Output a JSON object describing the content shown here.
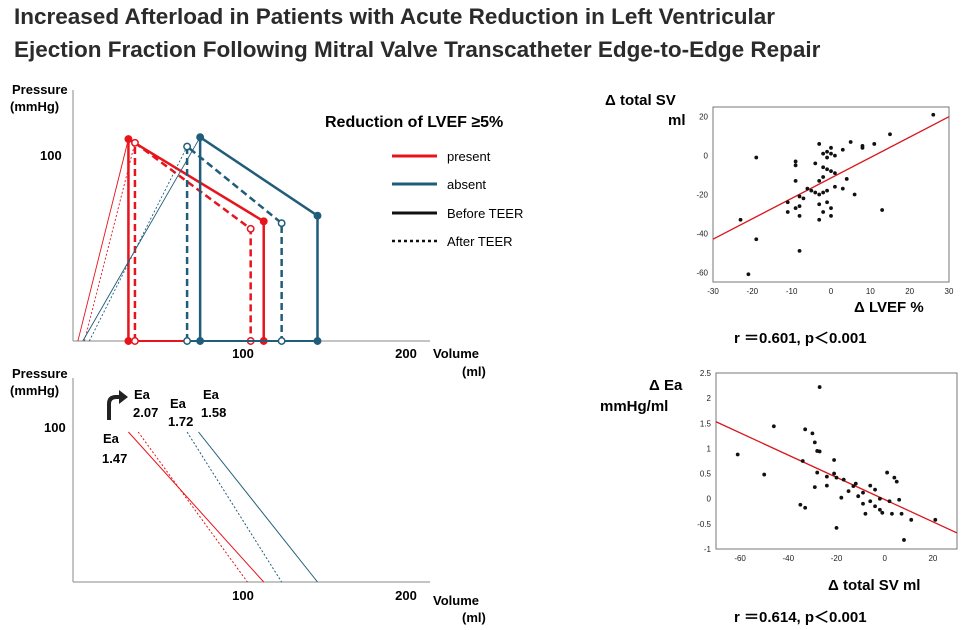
{
  "title": {
    "line1": "Increased Afterload in Patients with Acute Reduction in Left Ventricular",
    "line2": "Ejection Fraction Following Mitral Valve Transcatheter Edge-to-Edge Repair"
  },
  "colors": {
    "present": "#e8141c",
    "absent": "#1f5d7a",
    "fit_line": "#d9161c",
    "points": "#111111"
  },
  "chart_data": [
    {
      "id": "pv-loops",
      "type": "line",
      "title": "Reduction of LVEF ≥5%",
      "ylabel_line1": "Pressure",
      "ylabel_line2": "(mmHg)",
      "xlabel_line1": "Volume",
      "xlabel_line2": "(ml)",
      "y_ticks": [
        "100"
      ],
      "y_tick_values": [
        100
      ],
      "x_ticks": [
        "100",
        "200"
      ],
      "x_tick_values": [
        100,
        200
      ],
      "xlim": [
        0,
        230
      ],
      "ylim": [
        0,
        120
      ],
      "legend": [
        {
          "label": "present",
          "style": "solid",
          "color_key": "present"
        },
        {
          "label": "absent",
          "style": "solid",
          "color_key": "absent"
        },
        {
          "label": "Before TEER",
          "style": "solid",
          "color_key": "black"
        },
        {
          "label": "After TEER",
          "style": "dashed",
          "color_key": "black"
        }
      ],
      "series": [
        {
          "name": "present Before TEER",
          "group": "present",
          "phase": "before",
          "edv": 117,
          "esv": 34,
          "es_pressure": 108,
          "ed_end_pressure": 64,
          "v0": 3
        },
        {
          "name": "present After TEER",
          "group": "present",
          "phase": "after",
          "edv": 109,
          "esv": 38,
          "es_pressure": 106,
          "ed_end_pressure": 60,
          "v0": 7
        },
        {
          "name": "absent Before TEER",
          "group": "absent",
          "phase": "before",
          "edv": 150,
          "esv": 78,
          "es_pressure": 109,
          "ed_end_pressure": 67,
          "v0": 6
        },
        {
          "name": "absent After TEER",
          "group": "absent",
          "phase": "after",
          "edv": 128,
          "esv": 70,
          "es_pressure": 104,
          "ed_end_pressure": 63,
          "v0": 10
        }
      ]
    },
    {
      "id": "ea-lines",
      "type": "line",
      "ylabel_line1": "Pressure",
      "ylabel_line2": "(mmHg)",
      "xlabel_line1": "Volume",
      "xlabel_line2": "(ml)",
      "y_ticks": [
        "100"
      ],
      "y_tick_values": [
        100
      ],
      "x_ticks": [
        "100",
        "200"
      ],
      "x_tick_values": [
        100,
        200
      ],
      "xlim": [
        0,
        230
      ],
      "ylim": [
        0,
        120
      ],
      "annotations": [
        {
          "label": "Ea",
          "value": "1.47"
        },
        {
          "label": "Ea",
          "value": "2.07"
        },
        {
          "label": "Ea",
          "value": "1.72"
        },
        {
          "label": "Ea",
          "value": "1.58"
        }
      ],
      "series": [
        {
          "name": "present Before TEER",
          "group": "present",
          "style": "solid",
          "ea": 1.47,
          "x_top": 34,
          "y_top": 100,
          "x_bottom": 117
        },
        {
          "name": "present After TEER",
          "group": "present",
          "style": "dashed",
          "ea": 2.07,
          "x_top": 40,
          "y_top": 100,
          "x_bottom": 107
        },
        {
          "name": "absent After TEER",
          "group": "absent",
          "style": "dashed",
          "ea": 1.72,
          "x_top": 70,
          "y_top": 100,
          "x_bottom": 128
        },
        {
          "name": "absent Before TEER",
          "group": "absent",
          "style": "solid",
          "ea": 1.58,
          "x_top": 77,
          "y_top": 100,
          "x_bottom": 150
        }
      ]
    },
    {
      "id": "scatter-sv-lvef",
      "type": "scatter",
      "ylabel_line1": "Δ total SV",
      "ylabel_line2": "ml",
      "xlabel": "Δ LVEF %",
      "xlim": [
        -30,
        30
      ],
      "ylim": [
        -65,
        25
      ],
      "x_ticks": [
        "-30",
        "-20",
        "-10",
        "0",
        "10",
        "20",
        "30"
      ],
      "x_tick_values": [
        -30,
        -20,
        -10,
        0,
        10,
        20,
        30
      ],
      "y_ticks": [
        "20",
        "0",
        "-20",
        "-40",
        "-60"
      ],
      "y_tick_values": [
        20,
        0,
        -20,
        -40,
        -60
      ],
      "regression": {
        "x1": -30,
        "y1": -43,
        "x2": 30,
        "y2": 20
      },
      "stat": "r ＝0.601,  p＜0.001",
      "points": [
        [
          26,
          21
        ],
        [
          15,
          11
        ],
        [
          11,
          6
        ],
        [
          8,
          4
        ],
        [
          8,
          5
        ],
        [
          5,
          7
        ],
        [
          3,
          3
        ],
        [
          -3,
          6
        ],
        [
          0,
          4
        ],
        [
          -1,
          2
        ],
        [
          0,
          1
        ],
        [
          1,
          0
        ],
        [
          -2,
          1
        ],
        [
          -1,
          -1
        ],
        [
          -19,
          -1
        ],
        [
          -9,
          -3
        ],
        [
          -9,
          -5
        ],
        [
          -4,
          -4
        ],
        [
          -2,
          -6
        ],
        [
          -1,
          -7
        ],
        [
          0,
          -8
        ],
        [
          1,
          -9
        ],
        [
          -2,
          -11
        ],
        [
          -3,
          -13
        ],
        [
          -9,
          -13
        ],
        [
          -6,
          -17
        ],
        [
          -5,
          -18
        ],
        [
          -4,
          -19
        ],
        [
          -3,
          -20
        ],
        [
          -2,
          -19
        ],
        [
          -1,
          -18
        ],
        [
          1,
          -16
        ],
        [
          3,
          -17
        ],
        [
          -8,
          -21
        ],
        [
          -7,
          -22
        ],
        [
          -11,
          -24
        ],
        [
          -9,
          -27
        ],
        [
          -8,
          -26
        ],
        [
          -3,
          -25
        ],
        [
          -1,
          -24
        ],
        [
          -2,
          -29
        ],
        [
          0,
          -31
        ],
        [
          -3,
          -33
        ],
        [
          -8,
          -31
        ],
        [
          0,
          -27
        ],
        [
          13,
          -28
        ],
        [
          -11,
          -29
        ],
        [
          4,
          -12
        ],
        [
          6,
          -20
        ],
        [
          -23,
          -33
        ],
        [
          -19,
          -43
        ],
        [
          -8,
          -49
        ],
        [
          -21,
          -61
        ]
      ]
    },
    {
      "id": "scatter-ea-sv",
      "type": "scatter",
      "ylabel_line1": "Δ Ea",
      "ylabel_line2": "mmHg/ml",
      "xlabel": "Δ total SV ml",
      "xlim": [
        -70,
        30
      ],
      "ylim": [
        -1,
        2.5
      ],
      "x_ticks": [
        "-60",
        "-40",
        "-20",
        "0",
        "20"
      ],
      "x_tick_values": [
        -60,
        -40,
        -20,
        0,
        20
      ],
      "y_ticks": [
        "2.5",
        "2",
        "1.5",
        "1",
        "0.5",
        "0",
        "-0.5",
        "-1"
      ],
      "y_tick_values": [
        2.5,
        2,
        1.5,
        1,
        0.5,
        0,
        -0.5,
        -1
      ],
      "regression": {
        "x1": -70,
        "y1": 1.53,
        "x2": 30,
        "y2": -0.68
      },
      "stat": "r ＝0.614,  p＜0.001",
      "points": [
        [
          -27,
          2.22
        ],
        [
          -33,
          1.38
        ],
        [
          -30,
          1.3
        ],
        [
          -29,
          1.12
        ],
        [
          -46,
          1.44
        ],
        [
          -61,
          0.88
        ],
        [
          -50,
          0.48
        ],
        [
          -34,
          0.75
        ],
        [
          -28,
          0.95
        ],
        [
          -27,
          0.94
        ],
        [
          -21,
          0.77
        ],
        [
          -28,
          0.52
        ],
        [
          -24,
          0.44
        ],
        [
          -21,
          0.5
        ],
        [
          -20,
          0.42
        ],
        [
          -17,
          0.38
        ],
        [
          -12,
          0.3
        ],
        [
          -13,
          0.25
        ],
        [
          -15,
          0.15
        ],
        [
          -18,
          0.02
        ],
        [
          -11,
          0.05
        ],
        [
          -9,
          0.12
        ],
        [
          -6,
          0.26
        ],
        [
          -4,
          0.18
        ],
        [
          1,
          0.52
        ],
        [
          4,
          0.42
        ],
        [
          5,
          0.34
        ],
        [
          -2,
          0.0
        ],
        [
          -6,
          -0.05
        ],
        [
          -9,
          -0.1
        ],
        [
          -4,
          -0.15
        ],
        [
          -2,
          -0.22
        ],
        [
          2,
          -0.05
        ],
        [
          6,
          -0.02
        ],
        [
          7,
          -0.3
        ],
        [
          11,
          -0.42
        ],
        [
          -20,
          -0.58
        ],
        [
          3,
          -0.3
        ],
        [
          -24,
          0.26
        ],
        [
          -29,
          0.23
        ],
        [
          -33,
          -0.18
        ],
        [
          -35,
          -0.12
        ],
        [
          21,
          -0.42
        ],
        [
          8,
          -0.82
        ],
        [
          -1,
          -0.28
        ],
        [
          -8,
          -0.3
        ]
      ]
    }
  ]
}
